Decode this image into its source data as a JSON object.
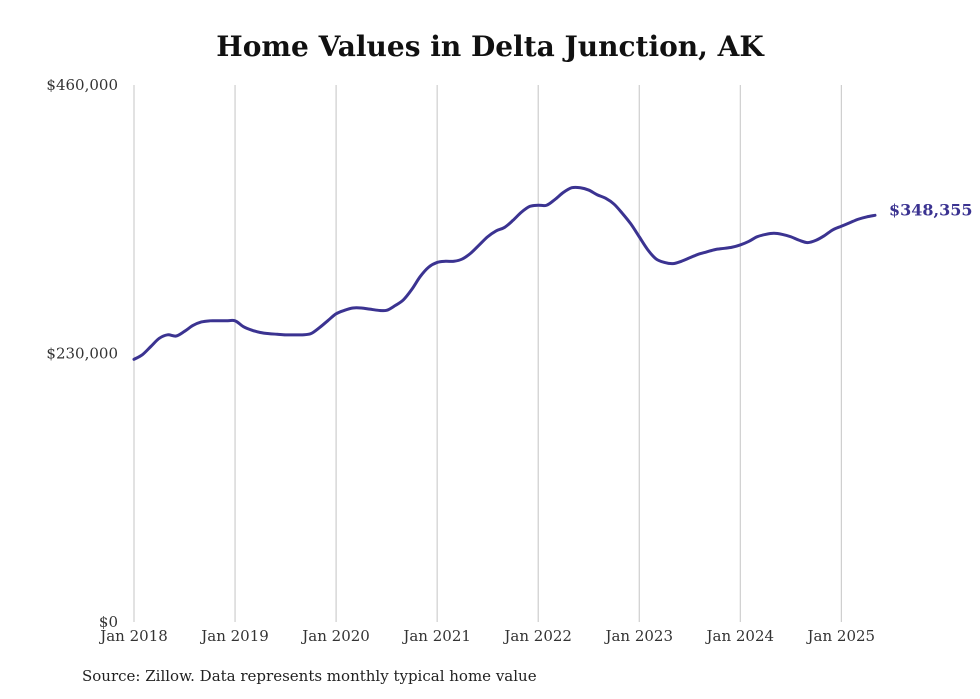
{
  "chart_data": {
    "type": "line",
    "title": "Home Values in Delta Junction, AK",
    "xlabel": "",
    "ylabel": "",
    "ylim": [
      0,
      460000
    ],
    "xlim": [
      "2018-01",
      "2025-05"
    ],
    "grid": "vertical",
    "line_color": "#3b3391",
    "y_ticks": [
      {
        "value": 0,
        "label": "$0"
      },
      {
        "value": 230000,
        "label": "$230,000"
      },
      {
        "value": 460000,
        "label": "$460,000"
      }
    ],
    "x_ticks": [
      {
        "date": "2018-01",
        "label": "Jan 2018"
      },
      {
        "date": "2019-01",
        "label": "Jan 2019"
      },
      {
        "date": "2020-01",
        "label": "Jan 2020"
      },
      {
        "date": "2021-01",
        "label": "Jan 2021"
      },
      {
        "date": "2022-01",
        "label": "Jan 2022"
      },
      {
        "date": "2023-01",
        "label": "Jan 2023"
      },
      {
        "date": "2024-01",
        "label": "Jan 2024"
      },
      {
        "date": "2025-01",
        "label": "Jan 2025"
      }
    ],
    "end_label": "$348,355",
    "series": [
      {
        "points": [
          [
            "2018-01",
            225000
          ],
          [
            "2018-02",
            229000
          ],
          [
            "2018-03",
            236000
          ],
          [
            "2018-04",
            243000
          ],
          [
            "2018-05",
            246000
          ],
          [
            "2018-06",
            245000
          ],
          [
            "2018-07",
            249000
          ],
          [
            "2018-08",
            254000
          ],
          [
            "2018-09",
            257000
          ],
          [
            "2018-10",
            258000
          ],
          [
            "2018-11",
            258000
          ],
          [
            "2018-12",
            258000
          ],
          [
            "2019-01",
            258000
          ],
          [
            "2019-02",
            253000
          ],
          [
            "2019-03",
            250000
          ],
          [
            "2019-04",
            248000
          ],
          [
            "2019-05",
            247000
          ],
          [
            "2019-06",
            246500
          ],
          [
            "2019-07",
            246000
          ],
          [
            "2019-08",
            246000
          ],
          [
            "2019-09",
            246000
          ],
          [
            "2019-10",
            247000
          ],
          [
            "2019-11",
            252000
          ],
          [
            "2019-12",
            258000
          ],
          [
            "2020-01",
            264000
          ],
          [
            "2020-02",
            267000
          ],
          [
            "2020-03",
            269000
          ],
          [
            "2020-04",
            269000
          ],
          [
            "2020-05",
            268000
          ],
          [
            "2020-06",
            267000
          ],
          [
            "2020-07",
            267000
          ],
          [
            "2020-08",
            271000
          ],
          [
            "2020-09",
            276000
          ],
          [
            "2020-10",
            285000
          ],
          [
            "2020-11",
            296000
          ],
          [
            "2020-12",
            304000
          ],
          [
            "2021-01",
            308000
          ],
          [
            "2021-02",
            309000
          ],
          [
            "2021-03",
            309000
          ],
          [
            "2021-04",
            311000
          ],
          [
            "2021-05",
            316000
          ],
          [
            "2021-06",
            323000
          ],
          [
            "2021-07",
            330000
          ],
          [
            "2021-08",
            335000
          ],
          [
            "2021-09",
            338000
          ],
          [
            "2021-10",
            344000
          ],
          [
            "2021-11",
            351000
          ],
          [
            "2021-12",
            356000
          ],
          [
            "2022-01",
            357000
          ],
          [
            "2022-02",
            357000
          ],
          [
            "2022-03",
            362000
          ],
          [
            "2022-04",
            368000
          ],
          [
            "2022-05",
            372000
          ],
          [
            "2022-06",
            372000
          ],
          [
            "2022-07",
            370000
          ],
          [
            "2022-08",
            366000
          ],
          [
            "2022-09",
            363000
          ],
          [
            "2022-10",
            358000
          ],
          [
            "2022-11",
            350000
          ],
          [
            "2022-12",
            341000
          ],
          [
            "2023-01",
            330000
          ],
          [
            "2023-02",
            319000
          ],
          [
            "2023-03",
            311000
          ],
          [
            "2023-04",
            308000
          ],
          [
            "2023-05",
            307000
          ],
          [
            "2023-06",
            309000
          ],
          [
            "2023-07",
            312000
          ],
          [
            "2023-08",
            315000
          ],
          [
            "2023-09",
            317000
          ],
          [
            "2023-10",
            319000
          ],
          [
            "2023-11",
            320000
          ],
          [
            "2023-12",
            321000
          ],
          [
            "2024-01",
            323000
          ],
          [
            "2024-02",
            326000
          ],
          [
            "2024-03",
            330000
          ],
          [
            "2024-04",
            332000
          ],
          [
            "2024-05",
            333000
          ],
          [
            "2024-06",
            332000
          ],
          [
            "2024-07",
            330000
          ],
          [
            "2024-08",
            327000
          ],
          [
            "2024-09",
            325000
          ],
          [
            "2024-10",
            327000
          ],
          [
            "2024-11",
            331000
          ],
          [
            "2024-12",
            336000
          ],
          [
            "2025-01",
            339000
          ],
          [
            "2025-02",
            342000
          ],
          [
            "2025-03",
            345000
          ],
          [
            "2025-04",
            347000
          ],
          [
            "2025-05",
            348355
          ]
        ]
      }
    ]
  },
  "source_note": "Source: Zillow. Data represents monthly typical home value"
}
